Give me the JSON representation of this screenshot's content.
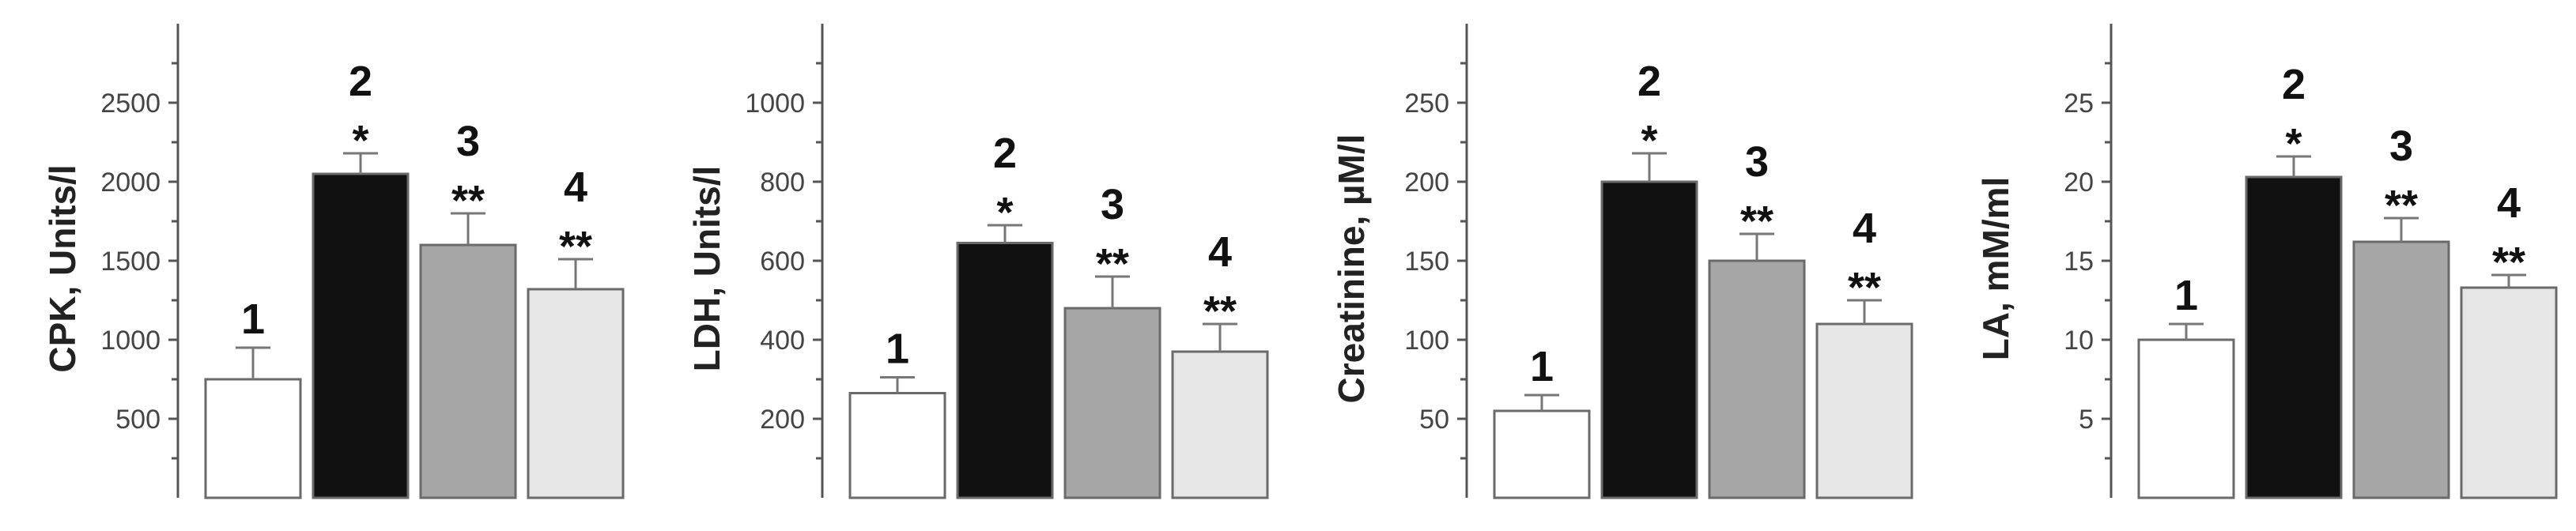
{
  "chart_data": [
    {
      "type": "bar",
      "ylabel": "CPK, Units/l",
      "ylim": [
        0,
        3000
      ],
      "yticks": [
        500,
        1000,
        1500,
        2000,
        2500
      ],
      "categories": [
        "1",
        "2",
        "3",
        "4"
      ],
      "values": [
        750,
        2050,
        1600,
        1320
      ],
      "errors": [
        200,
        130,
        200,
        190
      ],
      "significance": [
        "",
        "*",
        "**",
        "**"
      ],
      "colors": [
        "#ffffff",
        "#111111",
        "#a6a6a6",
        "#e6e6e6"
      ]
    },
    {
      "type": "bar",
      "ylabel": "LDH, Units/l",
      "ylim": [
        0,
        1200
      ],
      "yticks": [
        200,
        400,
        600,
        800,
        1000
      ],
      "categories": [
        "1",
        "2",
        "3",
        "4"
      ],
      "values": [
        265,
        645,
        480,
        370
      ],
      "errors": [
        40,
        45,
        80,
        70
      ],
      "significance": [
        "",
        "*",
        "**",
        "**"
      ],
      "colors": [
        "#ffffff",
        "#111111",
        "#a6a6a6",
        "#e6e6e6"
      ]
    },
    {
      "type": "bar",
      "ylabel": "Creatinine, µM/l",
      "ylim": [
        0,
        300
      ],
      "yticks": [
        50,
        100,
        150,
        200,
        250
      ],
      "categories": [
        "1",
        "2",
        "3",
        "4"
      ],
      "values": [
        55,
        200,
        150,
        110
      ],
      "errors": [
        10,
        18,
        17,
        15
      ],
      "significance": [
        "",
        "*",
        "**",
        "**"
      ],
      "colors": [
        "#ffffff",
        "#111111",
        "#a6a6a6",
        "#e6e6e6"
      ]
    },
    {
      "type": "bar",
      "ylabel": "LA,  mM/ml",
      "ylim": [
        0,
        30
      ],
      "yticks": [
        5,
        10,
        15,
        20,
        25
      ],
      "categories": [
        "1",
        "2",
        "3",
        "4"
      ],
      "values": [
        10,
        20.3,
        16.2,
        13.3
      ],
      "errors": [
        1.0,
        1.3,
        1.5,
        0.8
      ],
      "significance": [
        "",
        "*",
        "**",
        "**"
      ],
      "colors": [
        "#ffffff",
        "#111111",
        "#a6a6a6",
        "#e6e6e6"
      ]
    }
  ]
}
